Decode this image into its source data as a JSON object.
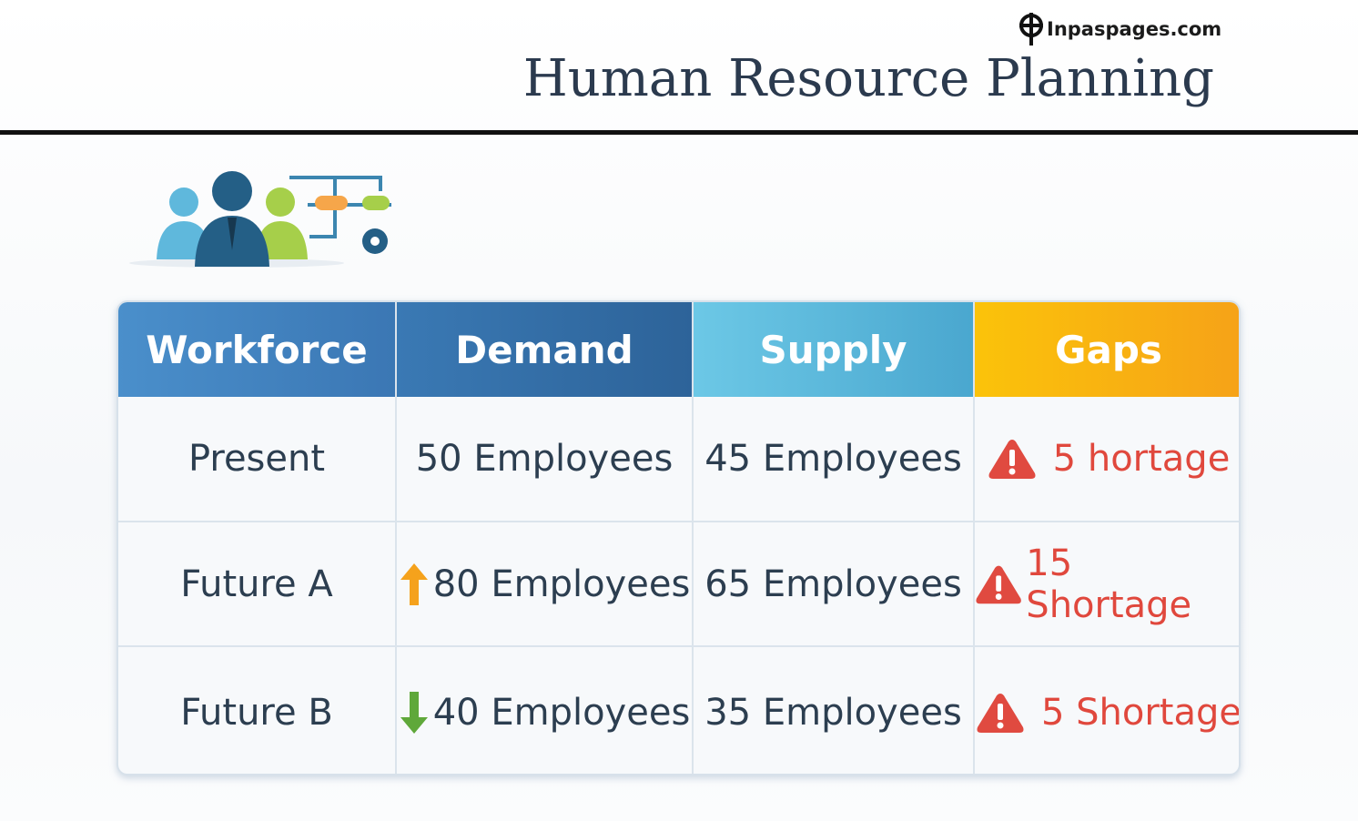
{
  "header": {
    "watermark": "Inpaspages.com",
    "title": "Human Resource Planning"
  },
  "table": {
    "columns": [
      "Workforce",
      "Demand",
      "Supply",
      "Gaps"
    ],
    "rows": [
      [
        "Present",
        "50 Employees",
        "45 Employees",
        "5 hortage"
      ],
      [
        "Future A",
        "80 Employees",
        "65 Employees",
        "15 Shortage"
      ],
      [
        "Future B",
        "40 Employees",
        "35 Employees",
        "5 Shortage"
      ]
    ]
  }
}
